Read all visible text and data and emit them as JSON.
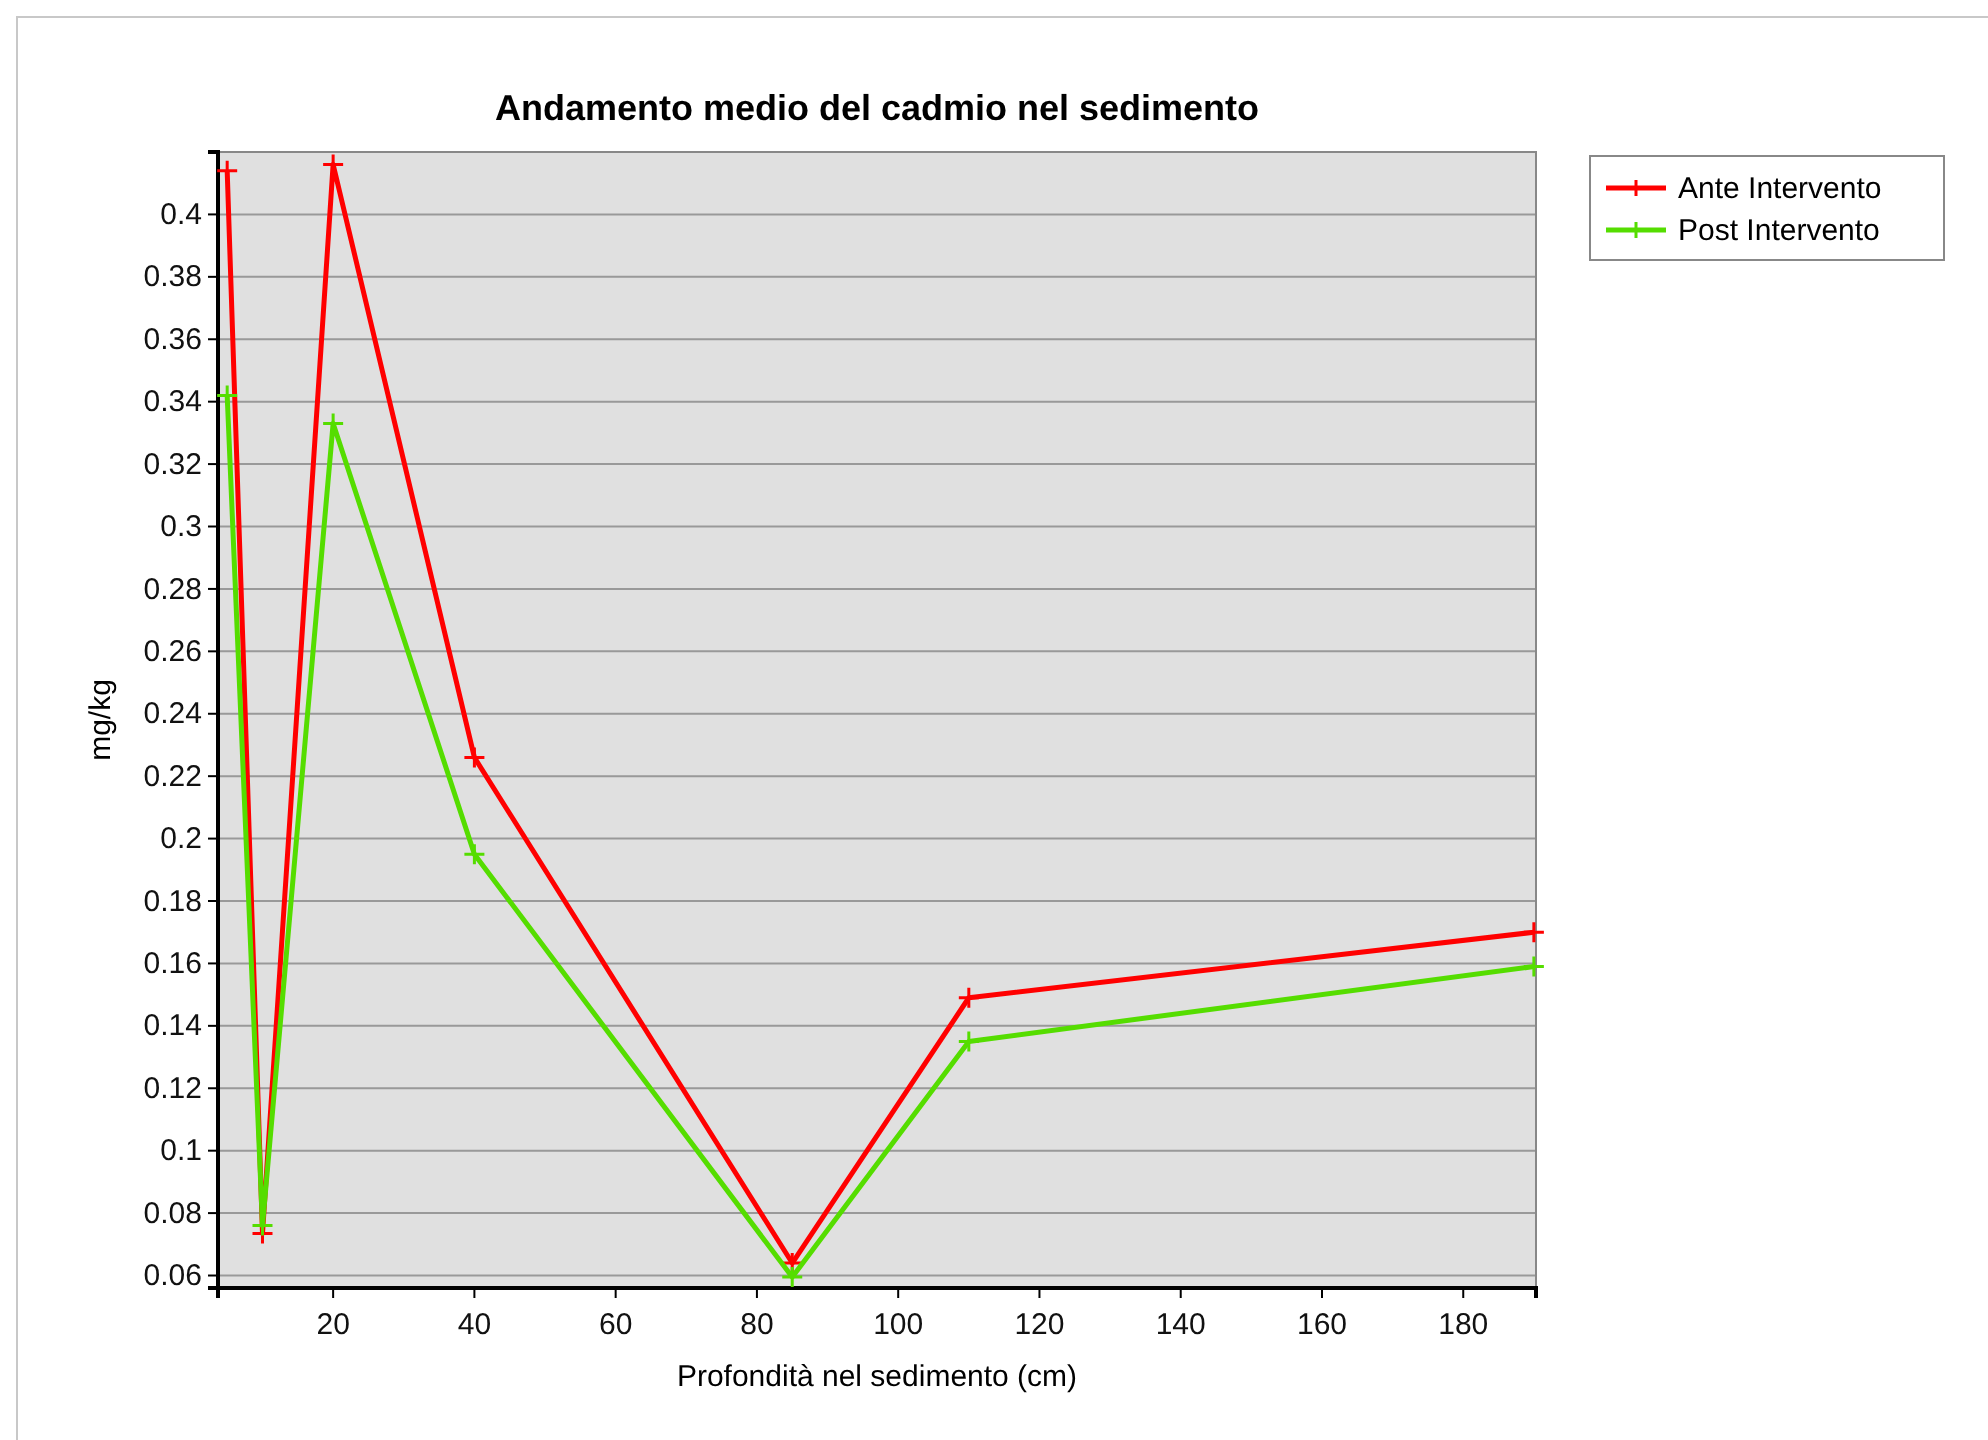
{
  "chart_data": {
    "type": "line",
    "title": "Andamento medio del cadmio nel sedimento",
    "xlabel": "Profondità nel sedimento (cm)",
    "ylabel": "mg/kg",
    "x": [
      5,
      10,
      20,
      40,
      85,
      110,
      190
    ],
    "series": [
      {
        "name": "Ante Intervento",
        "color": "#ff0000",
        "values": [
          0.414,
          0.0735,
          0.416,
          0.226,
          0.064,
          0.149,
          0.17
        ]
      },
      {
        "name": "Post Intervento",
        "color": "#55dd00",
        "values": [
          0.342,
          0.076,
          0.333,
          0.195,
          0.0595,
          0.135,
          0.159
        ]
      }
    ],
    "xlim": [
      3.7,
      190.3
    ],
    "xticks": [
      20,
      40,
      60,
      80,
      100,
      120,
      140,
      160,
      180
    ],
    "ylim": [
      0.056,
      0.42
    ],
    "yticks": [
      {
        "value": 0.06,
        "label": "0.06"
      },
      {
        "value": 0.08,
        "label": "0.08"
      },
      {
        "value": 0.1,
        "label": "0.1"
      },
      {
        "value": 0.12,
        "label": "0.12"
      },
      {
        "value": 0.14,
        "label": "0.14"
      },
      {
        "value": 0.16,
        "label": "0.16"
      },
      {
        "value": 0.18,
        "label": "0.18"
      },
      {
        "value": 0.2,
        "label": "0.2"
      },
      {
        "value": 0.22,
        "label": "0.22"
      },
      {
        "value": 0.24,
        "label": "0.24"
      },
      {
        "value": 0.26,
        "label": "0.26"
      },
      {
        "value": 0.28,
        "label": "0.28"
      },
      {
        "value": 0.3,
        "label": "0.3"
      },
      {
        "value": 0.32,
        "label": "0.32"
      },
      {
        "value": 0.34,
        "label": "0.34"
      },
      {
        "value": 0.36,
        "label": "0.36"
      },
      {
        "value": 0.38,
        "label": "0.38"
      },
      {
        "value": 0.4,
        "label": "0.4"
      }
    ],
    "grid": "y",
    "legend": "top right",
    "marker": "cross",
    "line_style": "solid"
  }
}
